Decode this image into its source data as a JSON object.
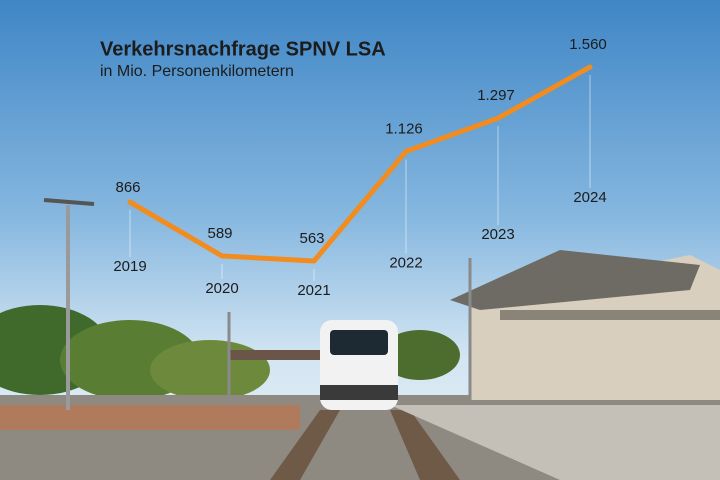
{
  "chart_data": {
    "type": "line",
    "title": "Verkehrsnachfrage SPNV LSA",
    "subtitle": "in Mio. Personenkilometern",
    "categories": [
      "2019",
      "2020",
      "2021",
      "2022",
      "2023",
      "2024"
    ],
    "values": [
      866,
      589,
      563,
      1126,
      1297,
      1560
    ],
    "value_labels": [
      "866",
      "589",
      "563",
      "1.126",
      "1.297",
      "1.560"
    ],
    "color": "#f28c1e"
  }
}
